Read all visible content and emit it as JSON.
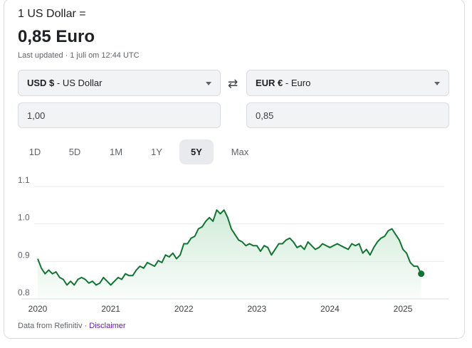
{
  "header": {
    "base": "1 US Dollar =",
    "result": "0,85 Euro",
    "updated": "Last updated · 1 juli om 12:44 UTC"
  },
  "from": {
    "code": "USD $",
    "name": " - US Dollar",
    "amount": "1,00"
  },
  "to": {
    "code": "EUR €",
    "name": " - Euro",
    "amount": "0,85"
  },
  "swap_icon": "swap-arrows-icon",
  "tabs": [
    {
      "label": "1D",
      "active": false
    },
    {
      "label": "5D",
      "active": false
    },
    {
      "label": "1M",
      "active": false
    },
    {
      "label": "1Y",
      "active": false
    },
    {
      "label": "5Y",
      "active": true
    },
    {
      "label": "Max",
      "active": false
    }
  ],
  "footer": {
    "source": "Data from Refinitiv · ",
    "disclaimer": "Disclaimer"
  },
  "colors": {
    "line": "#137333",
    "fill": "#ceead6",
    "grid": "#e8eaed"
  },
  "chart_data": {
    "type": "line",
    "ylim": [
      0.8,
      1.1
    ],
    "yticks": [
      "1.1",
      "1.0",
      "0.9",
      "0.8"
    ],
    "xticks": [
      "2020",
      "2021",
      "2022",
      "2023",
      "2024",
      "2025"
    ],
    "grid": true,
    "series": [
      {
        "x": [
          2020.0,
          2020.05,
          2020.1,
          2020.15,
          2020.2,
          2020.25,
          2020.3,
          2020.35,
          2020.4,
          2020.45,
          2020.5,
          2020.55,
          2020.6,
          2020.65,
          2020.7,
          2020.75,
          2020.8,
          2020.85,
          2020.9,
          2020.95,
          2021.0,
          2021.05,
          2021.1,
          2021.15,
          2021.2,
          2021.25,
          2021.3,
          2021.35,
          2021.4,
          2021.45,
          2021.5,
          2021.55,
          2021.6,
          2021.65,
          2021.7,
          2021.75,
          2021.8,
          2021.85,
          2021.9,
          2021.95,
          2022.0,
          2022.05,
          2022.1,
          2022.15,
          2022.2,
          2022.25,
          2022.3,
          2022.35,
          2022.4,
          2022.45,
          2022.5,
          2022.55,
          2022.6,
          2022.65,
          2022.7,
          2022.75,
          2022.8,
          2022.85,
          2022.9,
          2022.95,
          2023.0,
          2023.05,
          2023.1,
          2023.15,
          2023.2,
          2023.25,
          2023.3,
          2023.35,
          2023.4,
          2023.45,
          2023.5,
          2023.55,
          2023.6,
          2023.65,
          2023.7,
          2023.75,
          2023.8,
          2023.85,
          2023.9,
          2023.95,
          2024.0,
          2024.05,
          2024.1,
          2024.15,
          2024.2,
          2024.25,
          2024.3,
          2024.35,
          2024.4,
          2024.45,
          2024.5,
          2024.55,
          2024.6,
          2024.65,
          2024.7,
          2024.75,
          2024.8,
          2024.85,
          2024.9,
          2024.95,
          2025.0,
          2025.05,
          2025.1,
          2025.15,
          2025.2,
          2025.25
        ],
        "y": [
          0.89,
          0.865,
          0.85,
          0.86,
          0.85,
          0.855,
          0.84,
          0.835,
          0.82,
          0.83,
          0.82,
          0.835,
          0.84,
          0.835,
          0.825,
          0.83,
          0.82,
          0.825,
          0.84,
          0.83,
          0.82,
          0.83,
          0.84,
          0.835,
          0.85,
          0.845,
          0.845,
          0.86,
          0.87,
          0.865,
          0.88,
          0.875,
          0.87,
          0.885,
          0.88,
          0.9,
          0.895,
          0.905,
          0.89,
          0.9,
          0.93,
          0.93,
          0.945,
          0.95,
          0.97,
          0.975,
          0.99,
          1.0,
          0.99,
          1.02,
          1.01,
          1.02,
          1.0,
          0.97,
          0.955,
          0.94,
          0.935,
          0.925,
          0.93,
          0.925,
          0.925,
          0.91,
          0.925,
          0.92,
          0.9,
          0.915,
          0.93,
          0.93,
          0.94,
          0.945,
          0.935,
          0.92,
          0.925,
          0.915,
          0.935,
          0.925,
          0.915,
          0.92,
          0.93,
          0.925,
          0.92,
          0.925,
          0.93,
          0.925,
          0.92,
          0.915,
          0.93,
          0.925,
          0.93,
          0.905,
          0.915,
          0.9,
          0.92,
          0.935,
          0.945,
          0.95,
          0.965,
          0.97,
          0.955,
          0.94,
          0.915,
          0.905,
          0.88,
          0.87,
          0.87,
          0.85
        ]
      }
    ]
  }
}
